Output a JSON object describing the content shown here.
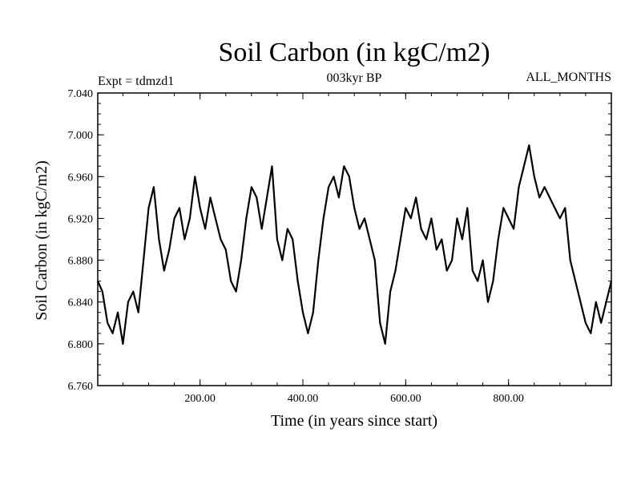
{
  "chart_data": {
    "type": "line",
    "title": "Soil Carbon (in kgC/m2)",
    "subtitle": "003kyr BP",
    "left_label": "Expt = tdmzd1",
    "right_label": "ALL_MONTHS",
    "xlabel": "Time (in years since start)",
    "ylabel": "Soil Carbon (in kgC/m2)",
    "xlim": [
      1,
      1000
    ],
    "ylim": [
      6.76,
      7.04
    ],
    "x_ticks": [
      200,
      400,
      600,
      800
    ],
    "x_tick_labels": [
      "200.00",
      "400.00",
      "600.00",
      "800.00"
    ],
    "y_ticks": [
      6.76,
      6.8,
      6.84,
      6.88,
      6.92,
      6.96,
      7.0,
      7.04
    ],
    "y_tick_labels": [
      "6.760",
      "6.800",
      "6.840",
      "6.880",
      "6.920",
      "6.960",
      "7.000",
      "7.040"
    ],
    "grid": false,
    "series": [
      {
        "name": "Soil Carbon",
        "color": "#000000",
        "x": [
          1,
          10,
          20,
          30,
          40,
          50,
          60,
          70,
          80,
          90,
          100,
          110,
          120,
          130,
          140,
          150,
          160,
          170,
          180,
          190,
          200,
          210,
          220,
          230,
          240,
          250,
          260,
          270,
          280,
          290,
          300,
          310,
          320,
          330,
          340,
          350,
          360,
          370,
          380,
          390,
          400,
          410,
          420,
          430,
          440,
          450,
          460,
          470,
          480,
          490,
          500,
          510,
          520,
          530,
          540,
          550,
          560,
          570,
          580,
          590,
          600,
          610,
          620,
          630,
          640,
          650,
          660,
          670,
          680,
          690,
          700,
          710,
          720,
          730,
          740,
          750,
          760,
          770,
          780,
          790,
          800,
          810,
          820,
          830,
          840,
          850,
          860,
          870,
          880,
          890,
          900,
          910,
          920,
          930,
          940,
          950,
          960,
          970,
          980,
          990,
          1000
        ],
        "values": [
          6.86,
          6.85,
          6.82,
          6.81,
          6.83,
          6.8,
          6.84,
          6.85,
          6.83,
          6.88,
          6.93,
          6.95,
          6.9,
          6.87,
          6.89,
          6.92,
          6.93,
          6.9,
          6.92,
          6.96,
          6.93,
          6.91,
          6.94,
          6.92,
          6.9,
          6.89,
          6.86,
          6.85,
          6.88,
          6.92,
          6.95,
          6.94,
          6.91,
          6.94,
          6.97,
          6.9,
          6.88,
          6.91,
          6.9,
          6.86,
          6.83,
          6.81,
          6.83,
          6.88,
          6.92,
          6.95,
          6.96,
          6.94,
          6.97,
          6.96,
          6.93,
          6.91,
          6.92,
          6.9,
          6.88,
          6.82,
          6.8,
          6.85,
          6.87,
          6.9,
          6.93,
          6.92,
          6.94,
          6.91,
          6.9,
          6.92,
          6.89,
          6.9,
          6.87,
          6.88,
          6.92,
          6.9,
          6.93,
          6.87,
          6.86,
          6.88,
          6.84,
          6.86,
          6.9,
          6.93,
          6.92,
          6.91,
          6.95,
          6.97,
          6.99,
          6.96,
          6.94,
          6.95,
          6.94,
          6.93,
          6.92,
          6.93,
          6.88,
          6.86,
          6.84,
          6.82,
          6.81,
          6.84,
          6.82,
          6.84,
          6.86
        ]
      }
    ]
  }
}
